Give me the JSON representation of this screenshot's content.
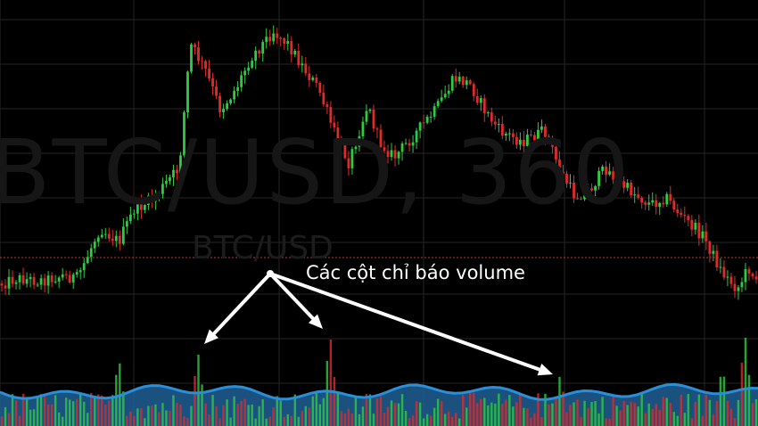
{
  "watermark": {
    "main": "BTC/USD, 360",
    "symbol": "BTC/USD"
  },
  "annotation": "Các cột chỉ báo volume",
  "colors": {
    "background": "#000000",
    "grid": "#262626",
    "up": "#2ecc40",
    "down": "#e02b2b",
    "volume_ma_fill": "#1e5f95",
    "volume_ma_line": "#2a8fd8",
    "price_line": "#c0392b",
    "arrow": "#ffffff"
  },
  "chart_data": {
    "type": "candlestick",
    "title": "",
    "symbol": "BTC/USD",
    "interval": "360",
    "grid": true,
    "price_path": [
      [
        0,
        0.04
      ],
      [
        0.02,
        0.06
      ],
      [
        0.05,
        0.05
      ],
      [
        0.08,
        0.07
      ],
      [
        0.1,
        0.06
      ],
      [
        0.13,
        0.25
      ],
      [
        0.155,
        0.2
      ],
      [
        0.175,
        0.32
      ],
      [
        0.2,
        0.36
      ],
      [
        0.235,
        0.48
      ],
      [
        0.25,
        0.95
      ],
      [
        0.27,
        0.85
      ],
      [
        0.29,
        0.7
      ],
      [
        0.31,
        0.78
      ],
      [
        0.33,
        0.9
      ],
      [
        0.36,
        1.0
      ],
      [
        0.38,
        0.95
      ],
      [
        0.4,
        0.86
      ],
      [
        0.42,
        0.78
      ],
      [
        0.44,
        0.62
      ],
      [
        0.46,
        0.5
      ],
      [
        0.485,
        0.72
      ],
      [
        0.5,
        0.58
      ],
      [
        0.52,
        0.52
      ],
      [
        0.545,
        0.6
      ],
      [
        0.575,
        0.7
      ],
      [
        0.6,
        0.82
      ],
      [
        0.62,
        0.8
      ],
      [
        0.64,
        0.7
      ],
      [
        0.66,
        0.62
      ],
      [
        0.69,
        0.58
      ],
      [
        0.72,
        0.62
      ],
      [
        0.74,
        0.47
      ],
      [
        0.76,
        0.37
      ],
      [
        0.78,
        0.4
      ],
      [
        0.8,
        0.48
      ],
      [
        0.82,
        0.42
      ],
      [
        0.84,
        0.38
      ],
      [
        0.86,
        0.34
      ],
      [
        0.88,
        0.37
      ],
      [
        0.9,
        0.3
      ],
      [
        0.93,
        0.22
      ],
      [
        0.955,
        0.08
      ],
      [
        0.975,
        0.02
      ],
      [
        0.99,
        0.1
      ],
      [
        1.0,
        0.06
      ]
    ],
    "volume_spikes": [
      [
        0.155,
        0.75
      ],
      [
        0.26,
        0.8
      ],
      [
        0.435,
        1.0
      ],
      [
        0.74,
        0.55
      ],
      [
        0.955,
        0.65
      ],
      [
        0.985,
        1.0
      ]
    ]
  }
}
